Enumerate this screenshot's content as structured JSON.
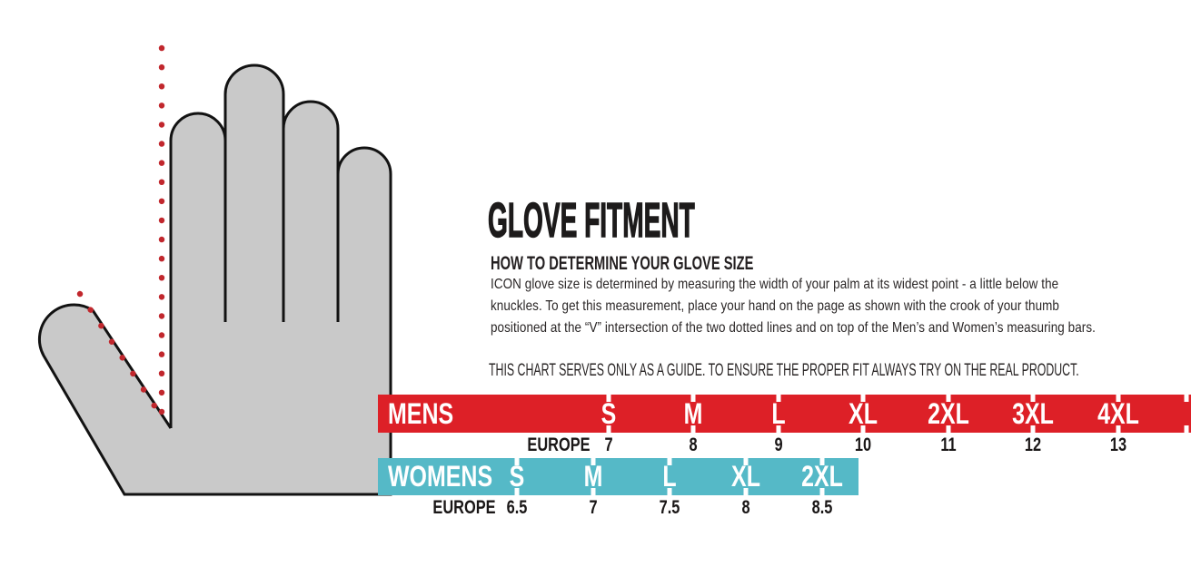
{
  "header": {
    "title": "GLOVE FITMENT",
    "subtitle": "HOW TO DETERMINE YOUR GLOVE SIZE",
    "body": "ICON glove size is determined by measuring the width of your palm at its widest point - a little below the knuckles. To get this measurement, place your hand on the page as shown with the crook of your thumb positioned at the “V” intersection of the two dotted lines and on top of the Men’s and Women’s measuring bars.",
    "note": "THIS CHART SERVES ONLY AS A GUIDE. TO ENSURE THE PROPER FIT ALWAYS TRY ON THE REAL PRODUCT."
  },
  "size_chart": {
    "mens": {
      "label": "MENS",
      "bar_color": "#dd2027",
      "sizes": [
        "S",
        "M",
        "L",
        "XL",
        "2XL",
        "3XL",
        "4XL"
      ],
      "europe_label": "EUROPE",
      "europe_values": [
        "7",
        "8",
        "9",
        "10",
        "11",
        "12",
        "13"
      ]
    },
    "womens": {
      "label": "WOMENS",
      "bar_color": "#55b9c7",
      "sizes": [
        "S",
        "M",
        "L",
        "XL",
        "2XL"
      ],
      "europe_label": "EUROPE",
      "europe_values": [
        "6.5",
        "7",
        "7.5",
        "8",
        "8.5"
      ]
    }
  },
  "illustration": {
    "description": "gray hand outline with red dotted measuring lines meeting at the crook of the thumb",
    "hand_fill_color": "#c9c9c9",
    "hand_outline_color": "#121212",
    "dotted_line_color": "#c1272d"
  }
}
